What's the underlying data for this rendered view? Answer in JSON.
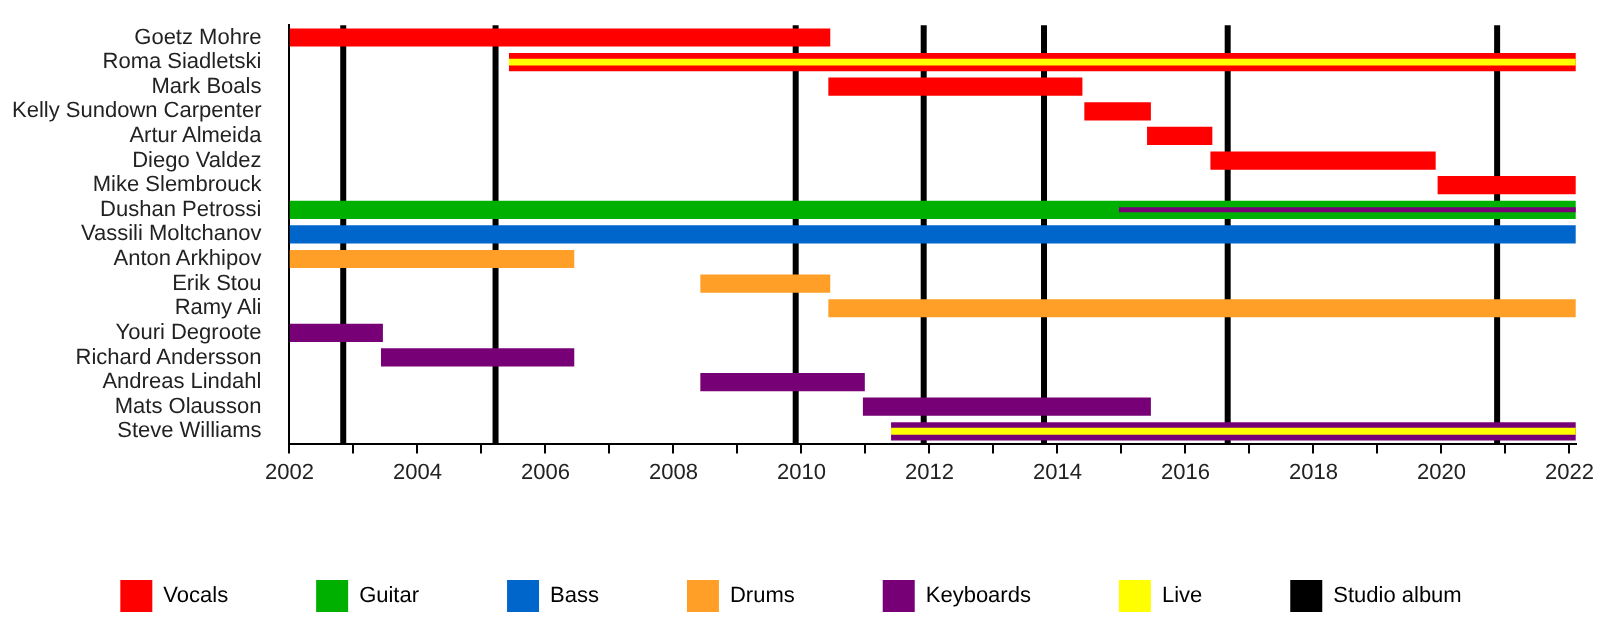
{
  "chart_data": {
    "type": "bar",
    "orientation": "horizontal",
    "legend": "bottom",
    "categories": [
      "Goetz Mohre",
      "Roma Siadletski",
      "Mark Boals",
      "Kelly Sundown Carpenter",
      "Artur Almeida",
      "Diego Valdez",
      "Mike Slembrouck",
      "Dushan Petrossi",
      "Vassili Moltchanov",
      "Anton Arkhipov",
      "Erik Stou",
      "Ramy Ali",
      "Youri Degroote",
      "Richard Andersson",
      "Andreas Lindahl",
      "Mats Olausson",
      "Steve Williams"
    ],
    "series": [
      {
        "name": "Vocals",
        "color": "#ff0000",
        "base": [
          2002,
          2005.43,
          2010.42,
          2014.42,
          2015.4,
          2016.39,
          2019.94,
          null,
          null,
          null,
          null,
          null,
          null,
          null,
          null,
          null,
          null
        ],
        "values": [
          8.45,
          16.67,
          3.97,
          1.04,
          1.02,
          3.52,
          2.16,
          null,
          null,
          null,
          null,
          null,
          null,
          null,
          null,
          null,
          null
        ]
      },
      {
        "name": "Guitar",
        "color": "#00b000",
        "base": [
          null,
          null,
          null,
          null,
          null,
          null,
          null,
          2002,
          null,
          null,
          null,
          null,
          null,
          null,
          null,
          null,
          null
        ],
        "values": [
          null,
          null,
          null,
          null,
          null,
          null,
          null,
          20.1,
          null,
          null,
          null,
          null,
          null,
          null,
          null,
          null,
          null
        ]
      },
      {
        "name": "Bass",
        "color": "#0066cc",
        "base": [
          null,
          null,
          null,
          null,
          null,
          null,
          null,
          null,
          2002,
          null,
          null,
          null,
          null,
          null,
          null,
          null,
          null
        ],
        "values": [
          null,
          null,
          null,
          null,
          null,
          null,
          null,
          null,
          20.1,
          null,
          null,
          null,
          null,
          null,
          null,
          null,
          null
        ]
      },
      {
        "name": "Drums",
        "color": "#ff9f28",
        "base": [
          null,
          null,
          null,
          null,
          null,
          null,
          null,
          null,
          null,
          2002,
          2008.42,
          2010.42,
          null,
          null,
          null,
          null,
          null
        ],
        "values": [
          null,
          null,
          null,
          null,
          null,
          null,
          null,
          null,
          null,
          4.45,
          2.03,
          11.68,
          null,
          null,
          null,
          null,
          null
        ]
      },
      {
        "name": "Keyboards",
        "color": "#770077",
        "base": [
          null,
          null,
          null,
          null,
          null,
          null,
          null,
          2014.96,
          null,
          null,
          null,
          null,
          2002,
          2003.43,
          2008.42,
          2010.96,
          2011.4
        ],
        "values": [
          null,
          null,
          null,
          null,
          null,
          null,
          null,
          7.14,
          null,
          null,
          null,
          null,
          1.46,
          3.02,
          2.57,
          4.5,
          10.7
        ]
      },
      {
        "name": "Live",
        "color": "#ffff00",
        "base": [
          null,
          2005.43,
          null,
          null,
          null,
          null,
          null,
          null,
          null,
          null,
          null,
          null,
          null,
          null,
          null,
          null,
          2011.4
        ],
        "values": [
          null,
          16.67,
          null,
          null,
          null,
          null,
          null,
          null,
          null,
          null,
          null,
          null,
          null,
          null,
          null,
          null,
          10.7
        ]
      }
    ],
    "ref_lines": [
      {
        "axis": "x",
        "value": 2002.84,
        "label": "Studio album",
        "color": "#000000"
      },
      {
        "axis": "x",
        "value": 2005.22,
        "color": "#000000"
      },
      {
        "axis": "x",
        "value": 2009.91,
        "color": "#000000"
      },
      {
        "axis": "x",
        "value": 2011.91,
        "color": "#000000"
      },
      {
        "axis": "x",
        "value": 2013.79,
        "color": "#000000"
      },
      {
        "axis": "x",
        "value": 2016.66,
        "color": "#000000"
      },
      {
        "axis": "x",
        "value": 2020.87,
        "color": "#000000"
      }
    ],
    "xlim": [
      2002,
      2022.1
    ],
    "xticks": [
      2002,
      {
        "value": 2003,
        "label": null
      },
      2004,
      {
        "value": 2005,
        "label": null
      },
      2006,
      {
        "value": 2007,
        "label": null
      },
      2008,
      {
        "value": 2009,
        "label": null
      },
      2010,
      {
        "value": 2011,
        "label": null
      },
      2012,
      {
        "value": 2013,
        "label": null
      },
      2014,
      {
        "value": 2015,
        "label": null
      },
      2016,
      {
        "value": 2017,
        "label": null
      },
      2018,
      {
        "value": 2019,
        "label": null
      },
      2020,
      {
        "value": 2021,
        "label": null
      },
      2022
    ]
  }
}
